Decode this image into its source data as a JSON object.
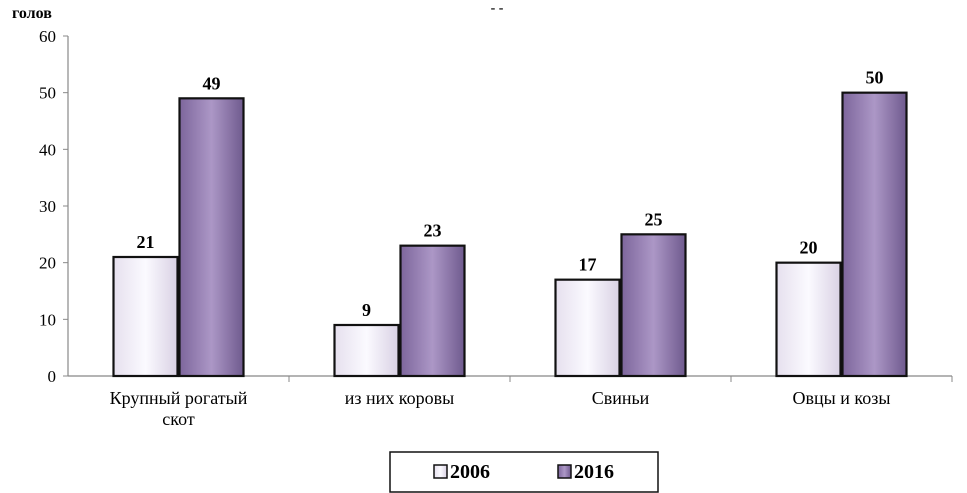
{
  "chart_data": {
    "type": "bar",
    "title": "- -",
    "ylabel": "голов",
    "xlabel": "",
    "ylim": [
      0,
      60
    ],
    "yticks": [
      0,
      10,
      20,
      30,
      40,
      50,
      60
    ],
    "categories": [
      [
        "Крупный рогатый",
        "скот"
      ],
      [
        "из них коровы"
      ],
      [
        "Свиньи"
      ],
      [
        "Овцы и козы"
      ]
    ],
    "series": [
      {
        "name": "2006",
        "values": [
          21,
          9,
          17,
          20
        ],
        "color": "#f3f0f7"
      },
      {
        "name": "2016",
        "values": [
          49,
          23,
          25,
          50
        ],
        "color": "#9d88b8"
      }
    ],
    "data_labels": true,
    "grid": false,
    "legend": "bottom"
  }
}
